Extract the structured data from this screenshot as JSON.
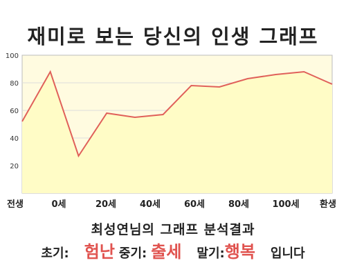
{
  "title": "재미로 보는 당신의 인생 그래프",
  "analysis": {
    "title": "최성연님의 그래프 분석결과",
    "early_label": "초기:",
    "early_value": "험난",
    "mid_label": "중기:",
    "mid_value": "출세",
    "late_label": "말기:",
    "late_value": "행복",
    "suffix": "입니다"
  },
  "colors": {
    "line": "#e0605a",
    "fill": "#fffcc6",
    "plot_bg": "#fffbe0",
    "highlight": "#e0534f"
  },
  "chart_data": {
    "type": "area",
    "title": "",
    "xlabel": "",
    "ylabel": "",
    "ylim": [
      0,
      100
    ],
    "yticks": [
      20,
      40,
      60,
      80,
      100
    ],
    "x_tick_labels": [
      "전생",
      "0세",
      "20세",
      "40세",
      "60세",
      "80세",
      "100세",
      "환생"
    ],
    "grid": true,
    "series": [
      {
        "values": [
          52,
          88,
          27,
          58,
          55,
          57,
          78,
          77,
          83,
          86,
          88,
          79
        ]
      }
    ]
  }
}
